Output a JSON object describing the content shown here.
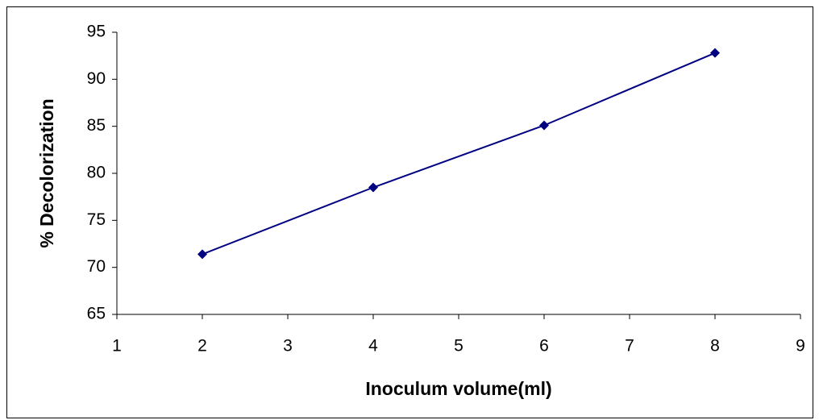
{
  "chart_data": {
    "type": "line",
    "x": [
      2,
      4,
      6,
      8
    ],
    "values": [
      71.4,
      78.5,
      85.1,
      92.8
    ],
    "color": "#000080",
    "xlabel": "Inoculum volume(ml)",
    "ylabel": "% Decolorization",
    "xlim": [
      1,
      9
    ],
    "xticks": [
      1,
      2,
      3,
      4,
      5,
      6,
      7,
      8,
      9
    ],
    "ylim": [
      65,
      95
    ],
    "yticks": [
      65,
      70,
      75,
      80,
      85,
      90,
      95
    ],
    "grid": false,
    "marker": "diamond"
  }
}
